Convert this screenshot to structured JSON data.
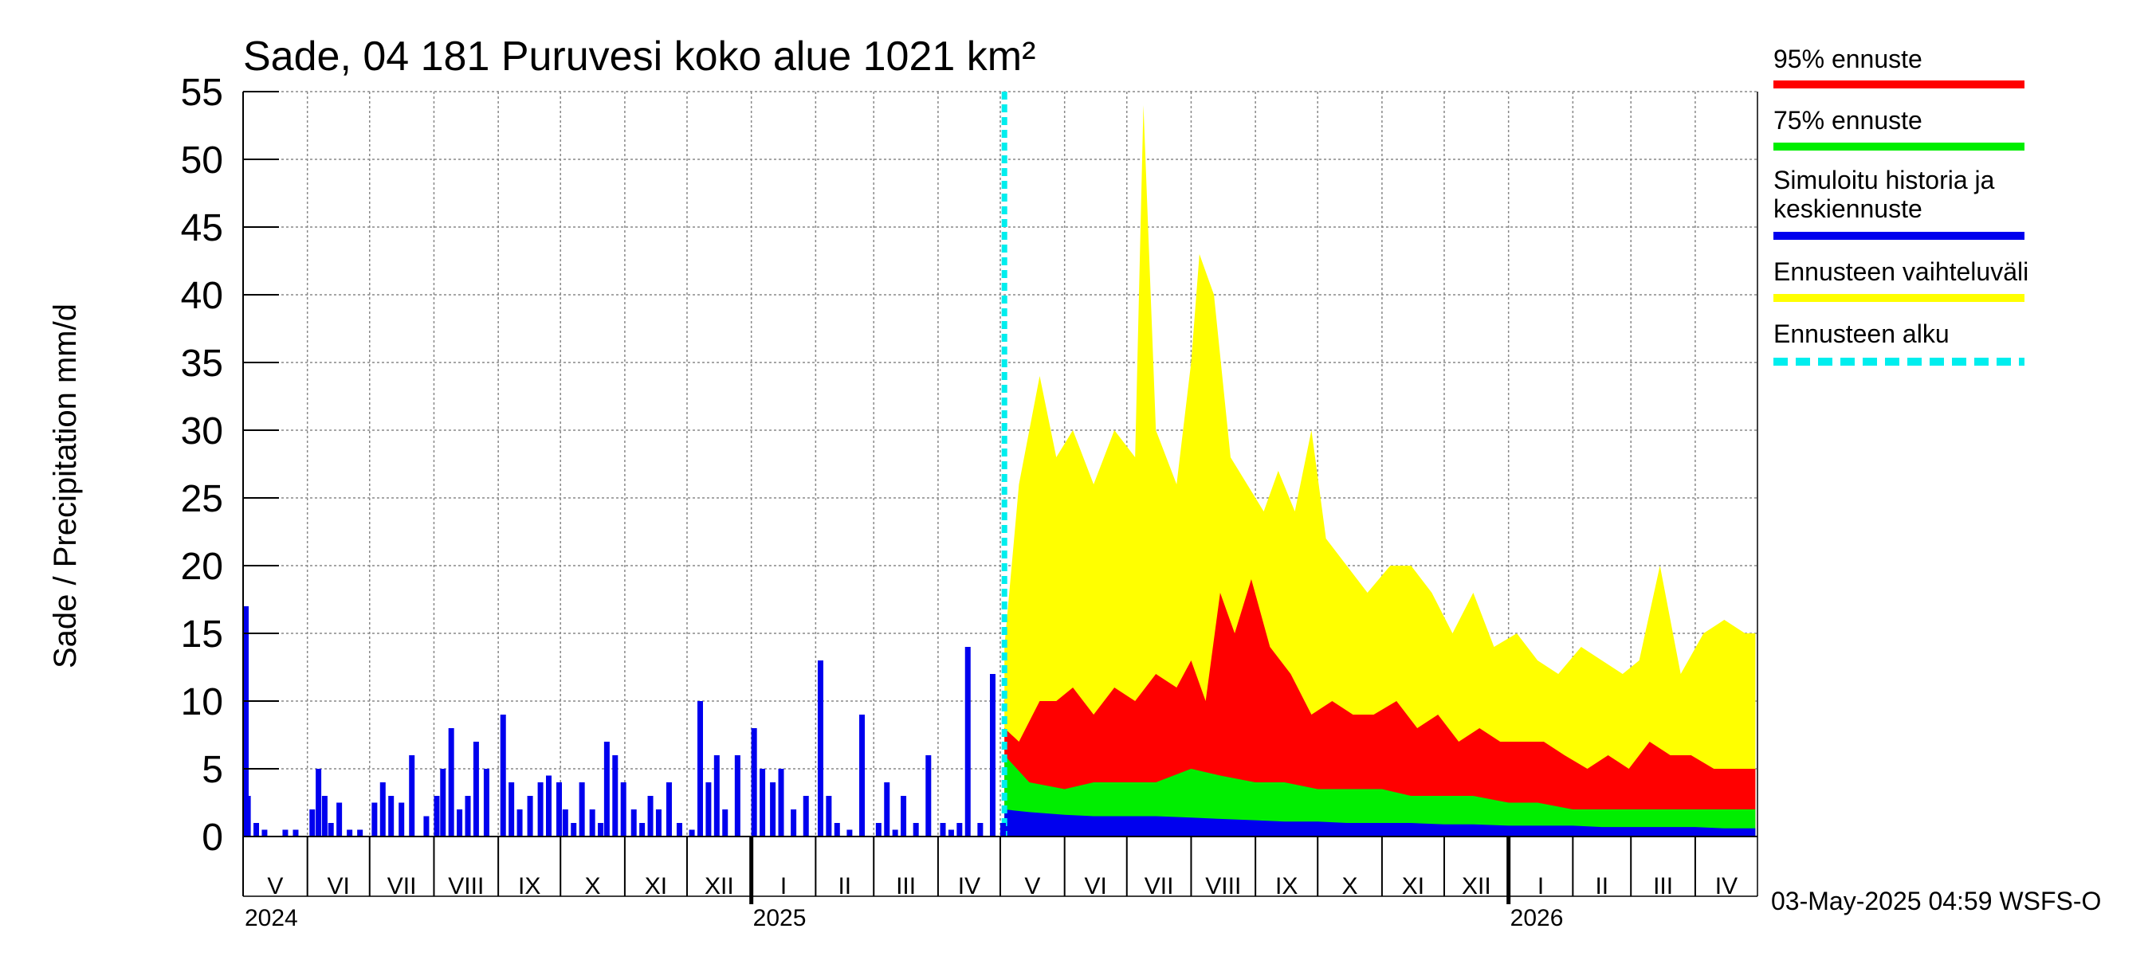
{
  "chart_data": {
    "type": "bar",
    "title": "Sade, 04 181 Puruvesi koko alue 1021 km²",
    "ylabel": "Sade / Precipitation   mm/d",
    "ylim": [
      0,
      55
    ],
    "yticks": [
      0,
      5,
      10,
      15,
      20,
      25,
      30,
      35,
      40,
      45,
      50,
      55
    ],
    "grid": true,
    "legend_position": "right",
    "xlim": [
      "2024-05-01",
      "2026-05-01"
    ],
    "forecast_start": "2025-05-03",
    "months": [
      {
        "label": "V",
        "start": "2024-05-01"
      },
      {
        "label": "VI",
        "start": "2024-06-01"
      },
      {
        "label": "VII",
        "start": "2024-07-01"
      },
      {
        "label": "VIII",
        "start": "2024-08-01"
      },
      {
        "label": "IX",
        "start": "2024-09-01"
      },
      {
        "label": "X",
        "start": "2024-10-01"
      },
      {
        "label": "XI",
        "start": "2024-11-01"
      },
      {
        "label": "XII",
        "start": "2024-12-01"
      },
      {
        "label": "I",
        "start": "2025-01-01"
      },
      {
        "label": "II",
        "start": "2025-02-01"
      },
      {
        "label": "III",
        "start": "2025-03-01"
      },
      {
        "label": "IV",
        "start": "2025-04-01"
      },
      {
        "label": "V",
        "start": "2025-05-01"
      },
      {
        "label": "VI",
        "start": "2025-06-01"
      },
      {
        "label": "VII",
        "start": "2025-07-01"
      },
      {
        "label": "VIII",
        "start": "2025-08-01"
      },
      {
        "label": "IX",
        "start": "2025-09-01"
      },
      {
        "label": "X",
        "start": "2025-10-01"
      },
      {
        "label": "XI",
        "start": "2025-11-01"
      },
      {
        "label": "XII",
        "start": "2025-12-01"
      },
      {
        "label": "I",
        "start": "2026-01-01"
      },
      {
        "label": "II",
        "start": "2026-02-01"
      },
      {
        "label": "III",
        "start": "2026-03-01"
      },
      {
        "label": "IV",
        "start": "2026-04-01"
      }
    ],
    "years": [
      {
        "label": "2024",
        "start": "2024-05-01"
      },
      {
        "label": "2025",
        "start": "2025-01-01"
      },
      {
        "label": "2026",
        "start": "2026-01-01"
      }
    ],
    "series": [
      {
        "name": "Ennusteen vaihteluväli",
        "color": "#ffff00",
        "kind": "forecast-max",
        "x": [
          "2025-05-03",
          "2025-05-10",
          "2025-05-20",
          "2025-05-28",
          "2025-06-05",
          "2025-06-15",
          "2025-06-25",
          "2025-07-05",
          "2025-07-09",
          "2025-07-15",
          "2025-07-25",
          "2025-08-01",
          "2025-08-05",
          "2025-08-12",
          "2025-08-20",
          "2025-08-28",
          "2025-09-05",
          "2025-09-12",
          "2025-09-20",
          "2025-09-28",
          "2025-10-05",
          "2025-10-15",
          "2025-10-25",
          "2025-11-05",
          "2025-11-15",
          "2025-11-25",
          "2025-12-05",
          "2025-12-15",
          "2025-12-25",
          "2026-01-05",
          "2026-01-15",
          "2026-01-25",
          "2026-02-05",
          "2026-02-15",
          "2026-02-25",
          "2026-03-05",
          "2026-03-15",
          "2026-03-25",
          "2026-04-05",
          "2026-04-15",
          "2026-04-25",
          "2026-04-30"
        ],
        "y": [
          14,
          26,
          34,
          28,
          30,
          26,
          30,
          28,
          54,
          30,
          26,
          35,
          43,
          40,
          28,
          26,
          24,
          27,
          24,
          30,
          22,
          20,
          18,
          20,
          20,
          18,
          15,
          18,
          14,
          15,
          13,
          12,
          14,
          13,
          12,
          13,
          20,
          12,
          15,
          16,
          15,
          15
        ]
      },
      {
        "name": "95% ennuste",
        "color": "#ff0000",
        "kind": "forecast-p95",
        "x": [
          "2025-05-03",
          "2025-05-10",
          "2025-05-20",
          "2025-05-28",
          "2025-06-05",
          "2025-06-15",
          "2025-06-25",
          "2025-07-05",
          "2025-07-15",
          "2025-07-25",
          "2025-08-01",
          "2025-08-08",
          "2025-08-15",
          "2025-08-22",
          "2025-08-30",
          "2025-09-08",
          "2025-09-18",
          "2025-09-28",
          "2025-10-08",
          "2025-10-18",
          "2025-10-28",
          "2025-11-08",
          "2025-11-18",
          "2025-11-28",
          "2025-12-08",
          "2025-12-18",
          "2025-12-28",
          "2026-01-08",
          "2026-01-18",
          "2026-01-28",
          "2026-02-08",
          "2026-02-18",
          "2026-02-28",
          "2026-03-10",
          "2026-03-20",
          "2026-03-30",
          "2026-04-10",
          "2026-04-20",
          "2026-04-30"
        ],
        "y": [
          8,
          7,
          10,
          10,
          11,
          9,
          11,
          10,
          12,
          11,
          13,
          10,
          18,
          15,
          19,
          14,
          12,
          9,
          10,
          9,
          9,
          10,
          8,
          9,
          7,
          8,
          7,
          7,
          7,
          6,
          5,
          6,
          5,
          7,
          6,
          6,
          5,
          5,
          5
        ]
      },
      {
        "name": "75% ennuste",
        "color": "#00ee00",
        "kind": "forecast-p75",
        "x": [
          "2025-05-03",
          "2025-05-15",
          "2025-06-01",
          "2025-06-15",
          "2025-07-01",
          "2025-07-15",
          "2025-08-01",
          "2025-08-15",
          "2025-09-01",
          "2025-09-15",
          "2025-10-01",
          "2025-10-15",
          "2025-11-01",
          "2025-11-15",
          "2025-12-01",
          "2025-12-15",
          "2026-01-01",
          "2026-01-15",
          "2026-02-01",
          "2026-02-15",
          "2026-03-01",
          "2026-03-15",
          "2026-04-01",
          "2026-04-15",
          "2026-04-30"
        ],
        "y": [
          6,
          4,
          3.5,
          4,
          4,
          4,
          5,
          4.5,
          4,
          4,
          3.5,
          3.5,
          3.5,
          3,
          3,
          3,
          2.5,
          2.5,
          2,
          2,
          2,
          2,
          2,
          2,
          2
        ]
      },
      {
        "name": "Simuloitu historia ja keskiennuste",
        "color": "#0000ee",
        "kind": "history-and-mean",
        "history_dates": [
          "2024-05-01",
          "2024-05-02",
          "2024-05-06",
          "2024-05-10",
          "2024-05-20",
          "2024-05-25",
          "2024-06-02",
          "2024-06-05",
          "2024-06-08",
          "2024-06-11",
          "2024-06-15",
          "2024-06-20",
          "2024-06-25",
          "2024-07-02",
          "2024-07-06",
          "2024-07-10",
          "2024-07-15",
          "2024-07-20",
          "2024-07-27",
          "2024-08-01",
          "2024-08-04",
          "2024-08-08",
          "2024-08-12",
          "2024-08-16",
          "2024-08-20",
          "2024-08-25",
          "2024-09-02",
          "2024-09-06",
          "2024-09-10",
          "2024-09-15",
          "2024-09-20",
          "2024-09-24",
          "2024-09-29",
          "2024-10-02",
          "2024-10-06",
          "2024-10-10",
          "2024-10-15",
          "2024-10-19",
          "2024-10-22",
          "2024-10-26",
          "2024-10-30",
          "2024-11-04",
          "2024-11-08",
          "2024-11-12",
          "2024-11-16",
          "2024-11-21",
          "2024-11-26",
          "2024-12-02",
          "2024-12-06",
          "2024-12-10",
          "2024-12-14",
          "2024-12-18",
          "2024-12-24",
          "2025-01-01",
          "2025-01-05",
          "2025-01-10",
          "2025-01-14",
          "2025-01-20",
          "2025-01-26",
          "2025-02-02",
          "2025-02-06",
          "2025-02-10",
          "2025-02-16",
          "2025-02-22",
          "2025-03-02",
          "2025-03-06",
          "2025-03-10",
          "2025-03-14",
          "2025-03-20",
          "2025-03-26",
          "2025-04-02",
          "2025-04-06",
          "2025-04-10",
          "2025-04-14",
          "2025-04-20",
          "2025-04-26",
          "2025-05-01"
        ],
        "history_values": [
          17,
          3,
          1,
          0.5,
          0.5,
          0.5,
          2,
          5,
          3,
          1,
          2.5,
          0.5,
          0.5,
          2.5,
          4,
          3,
          2.5,
          6,
          1.5,
          3,
          5,
          8,
          2,
          3,
          7,
          5,
          9,
          4,
          2,
          3,
          4,
          4.5,
          4,
          2,
          1,
          4,
          2,
          1,
          7,
          6,
          4,
          2,
          1,
          3,
          2,
          4,
          1,
          0.5,
          10,
          4,
          6,
          2,
          6,
          8,
          5,
          4,
          5,
          2,
          3,
          13,
          3,
          1,
          0.5,
          9,
          1,
          4,
          0.5,
          3,
          1,
          6,
          1,
          0.5,
          1,
          14,
          1,
          12,
          1
        ],
        "mean_forecast": [
          2,
          1.8,
          1.6,
          1.5,
          1.5,
          1.5,
          1.4,
          1.3,
          1.2,
          1.1,
          1.1,
          1,
          1,
          1,
          0.9,
          0.9,
          0.8,
          0.8,
          0.8,
          0.7,
          0.7,
          0.7,
          0.7,
          0.6,
          0.6
        ]
      }
    ],
    "legend": [
      {
        "label": "95% ennuste",
        "color": "#ff0000",
        "style": "solid"
      },
      {
        "label": "75% ennuste",
        "color": "#00ee00",
        "style": "solid"
      },
      {
        "label": "Simuloitu historia ja keskiennuste",
        "color": "#0000ee",
        "style": "solid"
      },
      {
        "label": "Ennusteen vaihteluväli",
        "color": "#ffff00",
        "style": "solid"
      },
      {
        "label": "Ennusteen alku",
        "color": "#00eeee",
        "style": "dashed"
      }
    ],
    "footer": "03-May-2025 04:59 WSFS-O"
  }
}
